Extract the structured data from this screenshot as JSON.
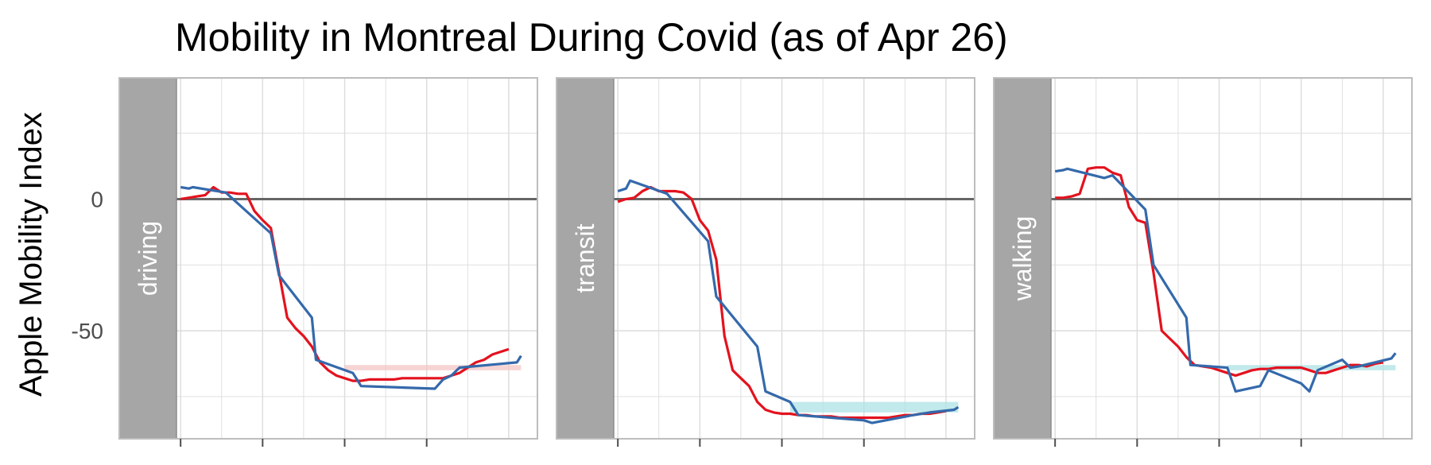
{
  "chart_data": {
    "type": "line",
    "title": "Mobility in Montreal During Covid (as of Apr 26)",
    "ylabel": "Apple Mobility Index",
    "xlabel": "",
    "ylim": [
      -91,
      46
    ],
    "xlim": [
      -0.5,
      43.5
    ],
    "y_ticks": [
      0,
      -50
    ],
    "y_tick_labels": [
      "0",
      "-50"
    ],
    "grid": true,
    "legend": "none",
    "reference_line": 0,
    "colors": {
      "red_series": "#e3121e",
      "blue_series": "#3469ab",
      "band_red": "#f4c6c6",
      "band_teal": "#aee2e4",
      "zero_line": "#666666",
      "strip": "#a6a6a6",
      "grid": "#dcdcdc",
      "border": "#bdbdbd"
    },
    "panels": [
      {
        "label": "driving",
        "red": {
          "x": [
            0,
            1,
            2,
            3,
            4,
            5,
            6,
            7,
            8,
            9,
            10,
            11,
            12,
            13,
            14,
            15,
            16,
            17,
            18,
            19,
            20,
            21,
            22,
            23,
            24,
            25,
            26,
            27,
            28,
            29,
            30,
            31,
            32,
            33,
            34,
            35,
            36,
            37,
            38,
            39,
            40
          ],
          "y": [
            0,
            0.5,
            1,
            1.5,
            4.5,
            2.5,
            2.5,
            2,
            2,
            -4.5,
            -8,
            -11,
            -28,
            -45,
            -49,
            -52,
            -56,
            -62,
            -65,
            -67,
            -68,
            -69,
            -69,
            -68.5,
            -68.5,
            -68.5,
            -68.5,
            -68,
            -68,
            -68,
            -68,
            -68,
            -68,
            -67,
            -66,
            -64,
            -62,
            -61,
            -59,
            -58,
            -57
          ]
        },
        "blue": {
          "x": [
            0,
            1,
            1.5,
            5.5,
            11,
            12,
            16,
            16.5,
            21,
            22,
            31,
            32,
            33,
            34,
            41,
            41.5
          ],
          "y": [
            4.5,
            4,
            4.5,
            2.5,
            -13,
            -29,
            -45,
            -61,
            -66,
            -71,
            -72,
            -68.5,
            -67,
            -64,
            -62,
            -59.5
          ]
        },
        "band": {
          "x_start": 20,
          "x_end": 41.5,
          "y_low": -65,
          "y_high": -63
        }
      },
      {
        "label": "transit",
        "red": {
          "x": [
            0,
            1,
            2,
            3,
            4,
            5,
            6,
            7,
            8,
            9,
            10,
            11,
            12,
            13,
            14,
            15,
            16,
            17,
            18,
            19,
            20,
            21,
            22,
            23,
            24,
            25,
            26,
            27,
            28,
            29,
            30,
            31,
            32,
            33,
            34,
            35,
            36,
            37,
            38,
            39,
            40
          ],
          "y": [
            -1,
            0,
            0.5,
            3,
            4.5,
            3,
            3,
            3,
            2.5,
            0,
            -8,
            -12,
            -23,
            -52,
            -65,
            -68,
            -71,
            -77,
            -80,
            -81,
            -81.5,
            -81.5,
            -82,
            -82,
            -82.5,
            -82.5,
            -82.5,
            -83,
            -83,
            -83,
            -83,
            -83,
            -83,
            -83,
            -82.5,
            -82,
            -82,
            -81.5,
            -81.5,
            -81,
            -80.5
          ]
        },
        "blue": {
          "x": [
            0,
            1,
            1.5,
            6,
            11,
            12,
            17,
            18,
            21,
            22,
            30,
            31,
            36,
            38,
            41,
            41.5
          ],
          "y": [
            3,
            4,
            7,
            2,
            -16,
            -37,
            -56,
            -73,
            -77,
            -82,
            -84,
            -85,
            -82,
            -81,
            -80,
            -79
          ]
        },
        "band": {
          "x_start": 21,
          "x_end": 41.5,
          "y_low": -81,
          "y_high": -77
        }
      },
      {
        "label": "walking",
        "red": {
          "x": [
            0,
            1,
            2,
            3,
            4,
            5,
            6,
            7,
            8,
            9,
            10,
            11,
            12,
            13,
            14,
            15,
            16,
            17,
            18,
            19,
            20,
            21,
            22,
            23,
            24,
            25,
            26,
            27,
            28,
            29,
            30,
            31,
            32,
            33,
            34,
            35,
            36,
            37,
            38,
            39,
            40
          ],
          "y": [
            0.5,
            0.5,
            1,
            2,
            11.5,
            12,
            12,
            10,
            9,
            -3,
            -8,
            -9,
            -28,
            -50,
            -53,
            -56,
            -60,
            -63,
            -63.5,
            -64,
            -65,
            -66,
            -67,
            -66,
            -65,
            -64.5,
            -64.5,
            -64,
            -64,
            -64,
            -64,
            -65,
            -66,
            -66,
            -65,
            -64,
            -63,
            -63,
            -63.5,
            -62.5,
            -62
          ]
        },
        "blue": {
          "x": [
            0,
            1,
            1.5,
            6,
            7,
            11,
            12,
            16,
            16.5,
            21,
            22,
            25,
            26,
            30,
            31,
            32,
            35,
            36,
            37,
            41,
            41.5
          ],
          "y": [
            10.5,
            11,
            11.5,
            8,
            9,
            -4,
            -25,
            -45,
            -63,
            -64,
            -73,
            -71,
            -65,
            -70,
            -73,
            -65,
            -61,
            -64,
            -63.5,
            -60.5,
            -58.5
          ]
        },
        "band": {
          "x_start": 21,
          "x_end": 41.5,
          "y_low": -65,
          "y_high": -63
        }
      }
    ]
  }
}
